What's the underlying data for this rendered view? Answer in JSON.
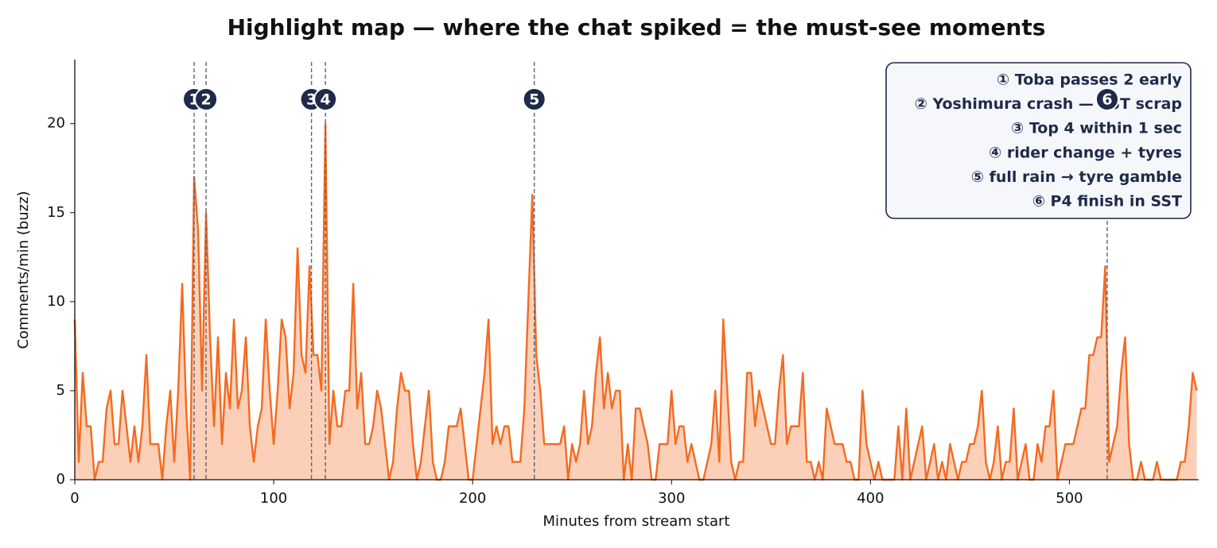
{
  "chart_data": {
    "type": "area",
    "title": "Highlight map — where the chat spiked = the must-see moments",
    "xlabel": "Minutes from stream start",
    "ylabel": "Comments/min (buzz)",
    "color": "#f26b21",
    "fill_color": "#fcd0b8",
    "xlim": [
      0,
      565
    ],
    "ylim": [
      0,
      23.6
    ],
    "xticks": [
      0,
      100,
      200,
      300,
      400,
      500
    ],
    "yticks": [
      0,
      5,
      10,
      15,
      20
    ],
    "grid": false,
    "legend_position": "upper right",
    "x": [
      0,
      2,
      4,
      6,
      8,
      10,
      12,
      14,
      16,
      18,
      20,
      22,
      24,
      26,
      28,
      30,
      32,
      34,
      36,
      38,
      40,
      42,
      44,
      46,
      48,
      50,
      52,
      54,
      56,
      58,
      60,
      62,
      64,
      66,
      68,
      70,
      72,
      74,
      76,
      78,
      80,
      82,
      84,
      86,
      88,
      90,
      92,
      94,
      96,
      98,
      100,
      102,
      104,
      106,
      108,
      110,
      112,
      114,
      116,
      118,
      120,
      122,
      124,
      126,
      128,
      130,
      132,
      134,
      136,
      138,
      140,
      142,
      144,
      146,
      148,
      150,
      152,
      154,
      156,
      158,
      160,
      162,
      164,
      166,
      168,
      170,
      172,
      174,
      176,
      178,
      180,
      182,
      184,
      186,
      188,
      190,
      192,
      194,
      196,
      198,
      200,
      202,
      204,
      206,
      208,
      210,
      212,
      214,
      216,
      218,
      220,
      222,
      224,
      226,
      228,
      230,
      232,
      234,
      236,
      238,
      240,
      242,
      244,
      246,
      248,
      250,
      252,
      254,
      256,
      258,
      260,
      262,
      264,
      266,
      268,
      270,
      272,
      274,
      276,
      278,
      280,
      282,
      284,
      286,
      288,
      290,
      292,
      294,
      296,
      298,
      300,
      302,
      304,
      306,
      308,
      310,
      312,
      314,
      316,
      318,
      320,
      322,
      324,
      326,
      328,
      330,
      332,
      334,
      336,
      338,
      340,
      342,
      344,
      346,
      348,
      350,
      352,
      354,
      356,
      358,
      360,
      362,
      364,
      366,
      368,
      370,
      372,
      374,
      376,
      378,
      380,
      382,
      384,
      386,
      388,
      390,
      392,
      394,
      396,
      398,
      400,
      402,
      404,
      406,
      408,
      410,
      412,
      414,
      416,
      418,
      420,
      422,
      424,
      426,
      428,
      430,
      432,
      434,
      436,
      438,
      440,
      442,
      444,
      446,
      448,
      450,
      452,
      454,
      456,
      458,
      460,
      462,
      464,
      466,
      468,
      470,
      472,
      474,
      476,
      478,
      480,
      482,
      484,
      486,
      488,
      490,
      492,
      494,
      496,
      498,
      500,
      502,
      504,
      506,
      508,
      510,
      512,
      514,
      516,
      518,
      520,
      522,
      524,
      526,
      528,
      530,
      532,
      534,
      536,
      538,
      540,
      542,
      544,
      546,
      548,
      550,
      552,
      554,
      556,
      558,
      560,
      562,
      564
    ],
    "values": [
      9,
      1,
      6,
      3,
      3,
      0,
      1,
      1,
      4,
      5,
      2,
      2,
      5,
      3,
      1,
      3,
      1,
      3,
      7,
      2,
      2,
      2,
      0,
      3,
      5,
      1,
      5,
      11,
      4,
      0,
      17,
      14,
      5,
      15,
      8,
      3,
      8,
      2,
      6,
      4,
      9,
      4,
      5,
      8,
      3,
      1,
      3,
      4,
      9,
      5,
      2,
      5,
      9,
      8,
      4,
      6,
      13,
      7,
      6,
      12,
      7,
      7,
      5,
      20,
      2,
      5,
      3,
      3,
      5,
      5,
      11,
      4,
      6,
      2,
      2,
      3,
      5,
      4,
      2,
      0,
      1,
      4,
      6,
      5,
      5,
      2,
      0,
      1,
      3,
      5,
      1,
      0,
      0,
      1,
      3,
      3,
      3,
      4,
      2,
      0,
      0,
      2,
      4,
      6,
      9,
      2,
      3,
      2,
      3,
      3,
      1,
      1,
      1,
      4,
      10,
      16,
      7,
      5,
      2,
      2,
      2,
      2,
      2,
      3,
      0,
      2,
      1,
      2,
      5,
      2,
      3,
      6,
      8,
      4,
      6,
      4,
      5,
      5,
      0,
      2,
      0,
      4,
      4,
      3,
      2,
      0,
      0,
      2,
      2,
      2,
      5,
      2,
      3,
      3,
      1,
      2,
      1,
      0,
      0,
      1,
      2,
      5,
      1,
      9,
      5,
      1,
      0,
      1,
      1,
      6,
      6,
      3,
      5,
      4,
      3,
      2,
      2,
      5,
      7,
      2,
      3,
      3,
      3,
      6,
      1,
      1,
      0,
      1,
      0,
      4,
      3,
      2,
      2,
      2,
      1,
      1,
      0,
      0,
      5,
      2,
      1,
      0,
      1,
      0,
      0,
      0,
      0,
      3,
      0,
      4,
      0,
      1,
      2,
      3,
      0,
      1,
      2,
      0,
      1,
      0,
      2,
      1,
      0,
      1,
      1,
      2,
      2,
      3,
      5,
      1,
      0,
      1,
      3,
      0,
      1,
      1,
      4,
      0,
      1,
      2,
      0,
      0,
      2,
      1,
      3,
      3,
      5,
      0,
      1,
      2,
      2,
      2,
      3,
      4,
      4,
      7,
      7,
      8,
      8,
      12,
      1,
      2,
      3,
      6,
      8,
      2,
      0,
      0,
      1,
      0,
      0,
      0,
      1,
      0,
      0,
      0,
      0,
      0,
      1,
      1,
      3,
      6,
      5
    ],
    "events": [
      {
        "x": 60,
        "label": "1",
        "text": "① Toba passes 2 early"
      },
      {
        "x": 66,
        "label": "2",
        "text": "② Yoshimura crash — SST scrap"
      },
      {
        "x": 119,
        "label": "3",
        "text": "③ Top 4 within 1 sec"
      },
      {
        "x": 126,
        "label": "4",
        "text": "④ rider change + tyres"
      },
      {
        "x": 231,
        "label": "5",
        "text": "⑤ full rain → tyre gamble"
      },
      {
        "x": 519,
        "label": "6",
        "text": "⑥ P4 finish in SST"
      }
    ]
  }
}
